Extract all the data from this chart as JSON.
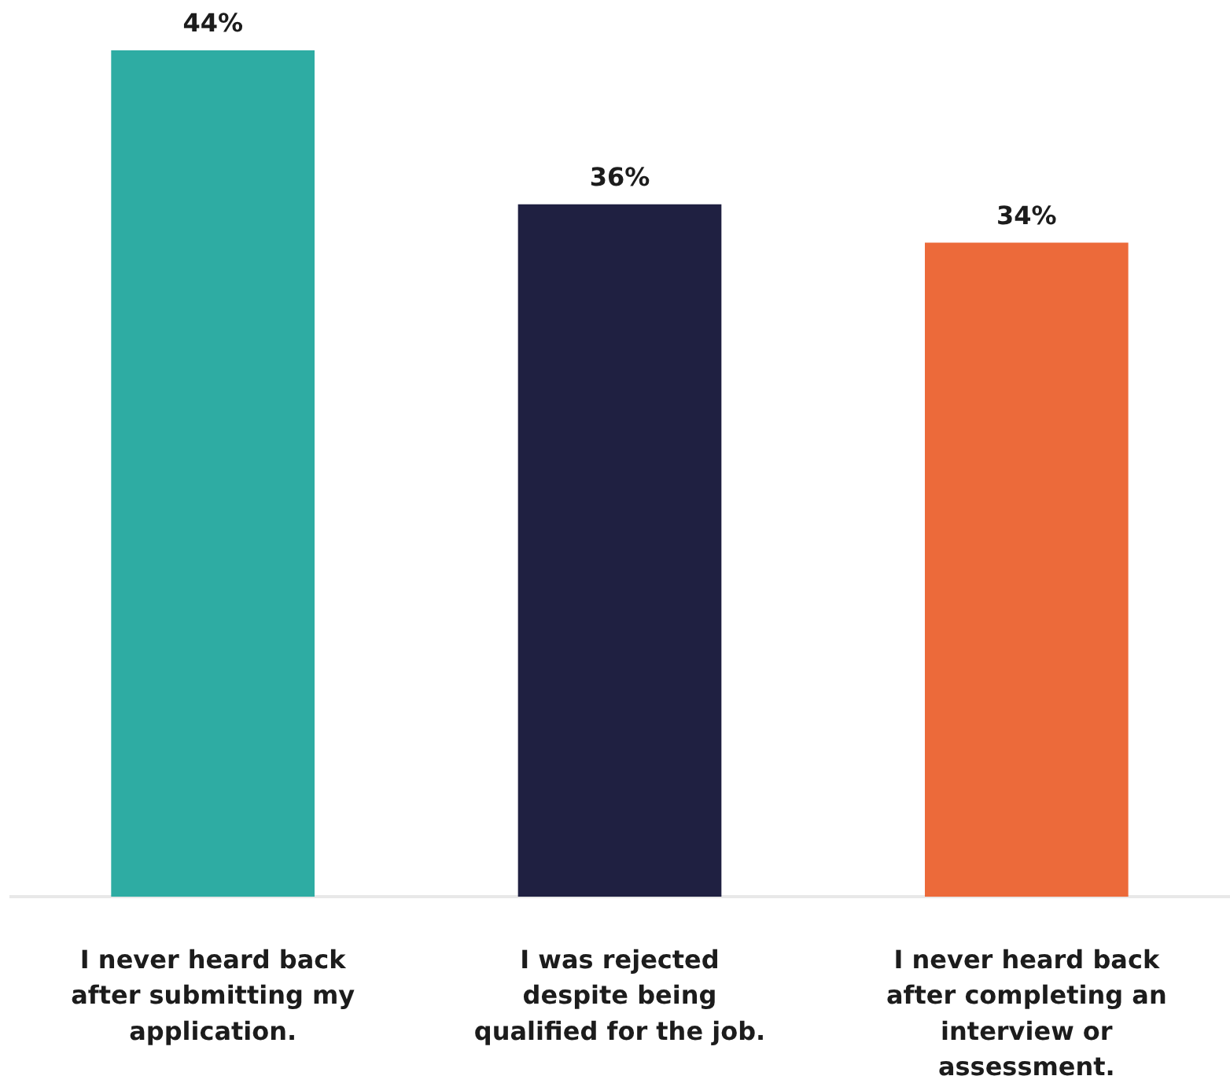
{
  "chart_data": {
    "type": "bar",
    "categories": [
      "I never heard back after submitting my application.",
      "I was rejected despite being qualified for the job.",
      "I never heard back after completing an interview or assessment."
    ],
    "values": [
      44,
      36,
      34
    ],
    "colors": [
      "#2eaca3",
      "#1f2041",
      "#ec6a3a"
    ],
    "value_labels": [
      "44%",
      "36%",
      "34%"
    ],
    "grid": false,
    "legend": false,
    "tick_labels": "x"
  }
}
